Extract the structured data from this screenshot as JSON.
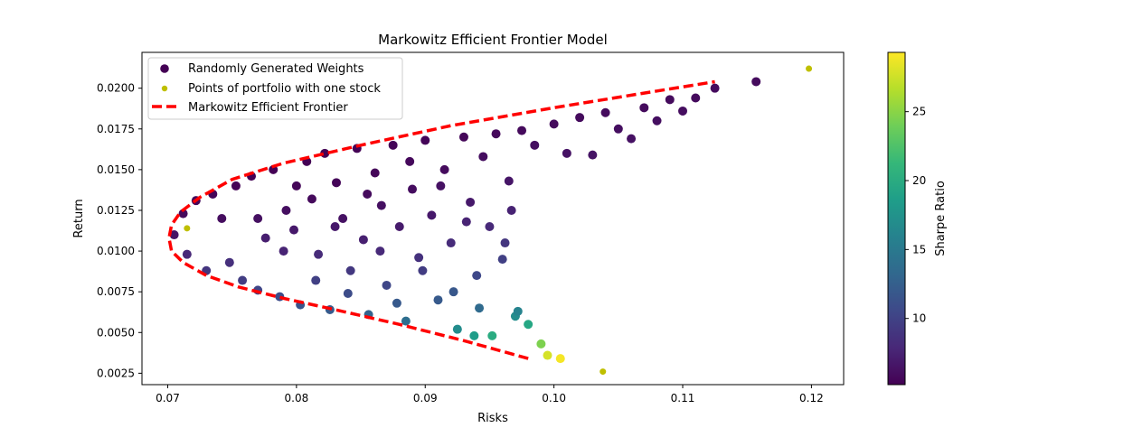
{
  "chart_data": {
    "type": "scatter",
    "title": "Markowitz Efficient Frontier Model",
    "xlabel": "Risks",
    "ylabel": "Return",
    "xlim": [
      0.068,
      0.1225
    ],
    "ylim": [
      0.0018,
      0.0222
    ],
    "x_ticks": [
      0.07,
      0.08,
      0.09,
      0.1,
      0.11,
      0.12
    ],
    "x_tick_labels": [
      "0.07",
      "0.08",
      "0.09",
      "0.10",
      "0.11",
      "0.12"
    ],
    "y_ticks": [
      0.0025,
      0.005,
      0.0075,
      0.01,
      0.0125,
      0.015,
      0.0175,
      0.02
    ],
    "y_tick_labels": [
      "0.0025",
      "0.0050",
      "0.0075",
      "0.0100",
      "0.0125",
      "0.0150",
      "0.0175",
      "0.0200"
    ],
    "grid": false,
    "legend_position": "top-left",
    "legend": [
      {
        "label": "Randomly Generated Weights",
        "marker": "circle",
        "color": "#440154"
      },
      {
        "label": "Points of portfolio with  one stock",
        "marker": "small-circle",
        "color": "#bfbf00"
      },
      {
        "label": "Markowitz Efficient Frontier",
        "marker": "dashed-line",
        "color": "#ff0000"
      }
    ],
    "colorbar": {
      "label": "Sharpe Ratio",
      "range": [
        5.2,
        29.3
      ],
      "ticks": [
        10,
        15,
        20,
        25
      ],
      "tick_labels": [
        "10",
        "15",
        "20",
        "25"
      ],
      "colormap": [
        "#440154",
        "#482878",
        "#3e4989",
        "#31688e",
        "#26828e",
        "#1f9e89",
        "#35b779",
        "#6ece58",
        "#b5de2b",
        "#fde725"
      ]
    },
    "series": [
      {
        "name": "Randomly Generated Weights",
        "kind": "scatter",
        "colored_by": "Sharpe Ratio",
        "points": [
          [
            0.0705,
            0.011,
            6.5
          ],
          [
            0.0712,
            0.0123,
            5.8
          ],
          [
            0.0715,
            0.0098,
            7.9
          ],
          [
            0.0722,
            0.0131,
            5.6
          ],
          [
            0.073,
            0.0088,
            9.0
          ],
          [
            0.0735,
            0.0135,
            5.5
          ],
          [
            0.0742,
            0.012,
            6.0
          ],
          [
            0.0748,
            0.0093,
            8.5
          ],
          [
            0.0753,
            0.014,
            5.4
          ],
          [
            0.0758,
            0.0082,
            9.6
          ],
          [
            0.0765,
            0.0146,
            5.3
          ],
          [
            0.077,
            0.0076,
            10.2
          ],
          [
            0.0776,
            0.0108,
            7.2
          ],
          [
            0.0782,
            0.015,
            5.3
          ],
          [
            0.0787,
            0.0072,
            10.8
          ],
          [
            0.0792,
            0.0125,
            6.1
          ],
          [
            0.0798,
            0.0113,
            6.8
          ],
          [
            0.0803,
            0.0067,
            11.5
          ],
          [
            0.0808,
            0.0155,
            5.3
          ],
          [
            0.0812,
            0.0132,
            5.8
          ],
          [
            0.0817,
            0.0098,
            8.1
          ],
          [
            0.0822,
            0.016,
            5.2
          ],
          [
            0.0826,
            0.0064,
            12.0
          ],
          [
            0.0831,
            0.0142,
            5.5
          ],
          [
            0.0836,
            0.012,
            6.3
          ],
          [
            0.0842,
            0.0088,
            9.2
          ],
          [
            0.0847,
            0.0163,
            5.3
          ],
          [
            0.0852,
            0.0107,
            7.3
          ],
          [
            0.0856,
            0.0061,
            12.8
          ],
          [
            0.0861,
            0.0148,
            5.6
          ],
          [
            0.0866,
            0.0128,
            6.2
          ],
          [
            0.087,
            0.0079,
            10.4
          ],
          [
            0.0875,
            0.0165,
            5.4
          ],
          [
            0.088,
            0.0115,
            7.0
          ],
          [
            0.0885,
            0.0057,
            13.9
          ],
          [
            0.089,
            0.0138,
            6.0
          ],
          [
            0.0895,
            0.0096,
            8.6
          ],
          [
            0.09,
            0.0168,
            5.5
          ],
          [
            0.0905,
            0.0122,
            6.8
          ],
          [
            0.091,
            0.007,
            12.0
          ],
          [
            0.0915,
            0.015,
            5.9
          ],
          [
            0.092,
            0.0105,
            8.2
          ],
          [
            0.0925,
            0.0052,
            16.9
          ],
          [
            0.093,
            0.017,
            5.6
          ],
          [
            0.0935,
            0.013,
            6.8
          ],
          [
            0.094,
            0.0085,
            10.5
          ],
          [
            0.0945,
            0.0158,
            6.0
          ],
          [
            0.095,
            0.0115,
            8.0
          ],
          [
            0.0955,
            0.0172,
            5.7
          ],
          [
            0.096,
            0.0095,
            9.8
          ],
          [
            0.0965,
            0.0143,
            6.6
          ],
          [
            0.097,
            0.006,
            17.0
          ],
          [
            0.0975,
            0.0174,
            5.8
          ],
          [
            0.098,
            0.0055,
            19.5
          ],
          [
            0.0985,
            0.0165,
            6.1
          ],
          [
            0.099,
            0.0043,
            24.5
          ],
          [
            0.0995,
            0.0036,
            27.8
          ],
          [
            0.1,
            0.0178,
            5.9
          ],
          [
            0.1005,
            0.0034,
            29.0
          ],
          [
            0.101,
            0.016,
            6.4
          ],
          [
            0.102,
            0.0182,
            5.9
          ],
          [
            0.103,
            0.0159,
            6.5
          ],
          [
            0.104,
            0.0185,
            5.9
          ],
          [
            0.105,
            0.0175,
            6.1
          ],
          [
            0.106,
            0.0169,
            6.3
          ],
          [
            0.107,
            0.0188,
            5.9
          ],
          [
            0.108,
            0.018,
            6.1
          ],
          [
            0.109,
            0.0193,
            5.9
          ],
          [
            0.11,
            0.0186,
            6.0
          ],
          [
            0.111,
            0.0194,
            5.9
          ],
          [
            0.1125,
            0.02,
            5.9
          ],
          [
            0.1157,
            0.0204,
            5.9
          ],
          [
            0.077,
            0.012,
            6.2
          ],
          [
            0.079,
            0.01,
            7.6
          ],
          [
            0.08,
            0.014,
            5.6
          ],
          [
            0.0815,
            0.0082,
            9.8
          ],
          [
            0.083,
            0.0115,
            6.8
          ],
          [
            0.084,
            0.0074,
            10.8
          ],
          [
            0.0855,
            0.0135,
            5.9
          ],
          [
            0.0865,
            0.01,
            8.0
          ],
          [
            0.0878,
            0.0068,
            11.9
          ],
          [
            0.0888,
            0.0155,
            5.7
          ],
          [
            0.0898,
            0.0088,
            9.5
          ],
          [
            0.0912,
            0.014,
            6.3
          ],
          [
            0.0922,
            0.0075,
            11.8
          ],
          [
            0.0932,
            0.0118,
            7.6
          ],
          [
            0.0942,
            0.0065,
            13.5
          ],
          [
            0.0952,
            0.0048,
            20.0
          ],
          [
            0.0962,
            0.0105,
            9.0
          ],
          [
            0.0972,
            0.0063,
            16.0
          ],
          [
            0.0967,
            0.0125,
            7.5
          ],
          [
            0.0938,
            0.0048,
            18.5
          ]
        ]
      },
      {
        "name": "Points of portfolio with  one stock",
        "kind": "scatter",
        "color": "#bfbf00",
        "points": [
          [
            0.0715,
            0.0114
          ],
          [
            0.1038,
            0.0026
          ],
          [
            0.1198,
            0.0212
          ]
        ]
      },
      {
        "name": "Markowitz Efficient Frontier",
        "kind": "line",
        "style": "dashed",
        "color": "#ff0000",
        "points": [
          [
            0.098,
            0.0034
          ],
          [
            0.093,
            0.0045
          ],
          [
            0.088,
            0.0055
          ],
          [
            0.083,
            0.0064
          ],
          [
            0.079,
            0.0071
          ],
          [
            0.0755,
            0.0078
          ],
          [
            0.073,
            0.0085
          ],
          [
            0.0712,
            0.0093
          ],
          [
            0.0703,
            0.01
          ],
          [
            0.0701,
            0.0108
          ],
          [
            0.0703,
            0.0116
          ],
          [
            0.071,
            0.0124
          ],
          [
            0.0725,
            0.0133
          ],
          [
            0.075,
            0.0144
          ],
          [
            0.079,
            0.0154
          ],
          [
            0.085,
            0.0165
          ],
          [
            0.092,
            0.0177
          ],
          [
            0.1,
            0.0188
          ],
          [
            0.107,
            0.0197
          ],
          [
            0.1125,
            0.0204
          ]
        ]
      }
    ]
  }
}
